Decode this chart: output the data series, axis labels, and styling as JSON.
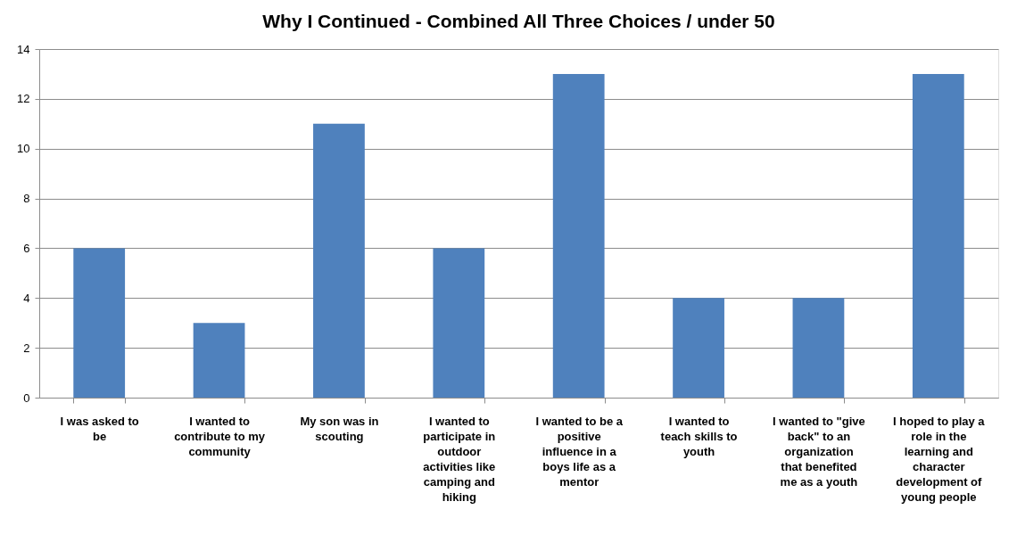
{
  "chart_data": {
    "type": "bar",
    "title": "Why I Continued - Combined All Three Choices / under 50",
    "categories": [
      "I was asked to be",
      "I wanted to contribute to my community",
      "My son was in scouting",
      "I wanted to participate in outdoor activities like camping and hiking",
      "I wanted to be a positive influence in a boys life as a mentor",
      "I wanted to teach skills to youth",
      "I wanted to \"give back\" to an organization that benefited me as a youth",
      "I hoped to play a role in the learning and character development of young people"
    ],
    "values": [
      6,
      3,
      11,
      6,
      13,
      4,
      4,
      13
    ],
    "color": "#4f81bd",
    "ylim": [
      0,
      14
    ],
    "yticks": [
      0,
      2,
      4,
      6,
      8,
      10,
      12,
      14
    ],
    "grid": "y"
  }
}
